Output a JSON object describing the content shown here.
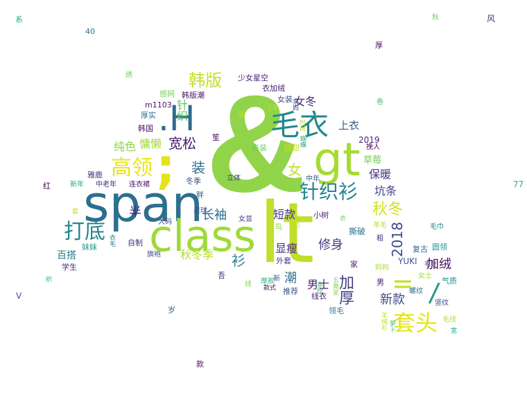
{
  "words": [
    {
      "text": "&",
      "color": "#91d44a"
    },
    {
      "text": "lt",
      "color": "#bfdf2a"
    },
    {
      "text": "span",
      "color": "#2c6f8e"
    },
    {
      "text": "class",
      "color": "#9fda38"
    },
    {
      "text": "gt",
      "color": "#a6db33"
    },
    {
      "text": ".H",
      "color": "#2e6b8e"
    },
    {
      "text": ";",
      "color": "#e6e31a"
    },
    {
      "text": "毛衣",
      "color": "#22888e"
    },
    {
      "text": "高领",
      "color": "#e9e41b"
    },
    {
      "text": "针织衫",
      "color": "#26838f"
    },
    {
      "text": "打底",
      "color": "#24848d"
    },
    {
      "text": "套头",
      "color": "#e6e419"
    },
    {
      "text": "=",
      "color": "#c7e020"
    },
    {
      "text": "/",
      "color": "#2a9a84"
    },
    {
      "text": "韩版",
      "color": "#c6df23"
    },
    {
      "text": "2018",
      "color": "#3e4989"
    },
    {
      "text": "宽松",
      "color": "#461a6b"
    },
    {
      "text": "秋冬",
      "color": "#d0e11c"
    },
    {
      "text": "长袖",
      "color": "#2f6c8e"
    },
    {
      "text": "女冬",
      "color": "#482475"
    },
    {
      "text": "加厚",
      "color": "#433d84"
    },
    {
      "text": "修身",
      "color": "#433e85"
    },
    {
      "text": "保暖",
      "color": "#453680"
    },
    {
      "text": "纯色",
      "color": "#8dd544"
    },
    {
      "text": "慵懒",
      "color": "#a0da39"
    },
    {
      "text": "坑条",
      "color": "#404387"
    },
    {
      "text": "装",
      "color": "#2e6e8e"
    },
    {
      "text": "女",
      "color": "#c3df25"
    },
    {
      "text": "半",
      "color": "#472d7b"
    },
    {
      "text": "衫",
      "color": "#2a7b8e"
    },
    {
      "text": "加绒",
      "color": "#471164"
    },
    {
      "text": "新款",
      "color": "#3f4788"
    },
    {
      "text": "上衣",
      "color": "#38588c"
    },
    {
      "text": "短款",
      "color": "#46327e"
    },
    {
      "text": "显瘦",
      "color": "#482878"
    },
    {
      "text": "男士",
      "color": "#482173"
    },
    {
      "text": "潮",
      "color": "#2c718e"
    },
    {
      "text": "秋冬季",
      "color": "#b5de2b"
    },
    {
      "text": "针织",
      "color": "#5ac864"
    },
    {
      "text": "百搭",
      "color": "#2a788e"
    },
    {
      "text": "草莓",
      "color": "#75d054"
    },
    {
      "text": "2019",
      "color": "#482677"
    },
    {
      "text": "YUKI",
      "color": "#3b528b"
    },
    {
      "text": "撕破",
      "color": "#2d708e"
    },
    {
      "text": "衣加绒",
      "color": "#481b6d"
    },
    {
      "text": "少女星空",
      "color": "#481f70"
    },
    {
      "text": "女装",
      "color": "#3d4e8a"
    },
    {
      "text": "感网",
      "color": "#7ad151"
    },
    {
      "text": "韩版潮",
      "color": "#48186a"
    },
    {
      "text": "m1103",
      "color": "#471365"
    },
    {
      "text": "厚实",
      "color": "#2c728e"
    },
    {
      "text": "韩国",
      "color": "#481467"
    },
    {
      "text": "18",
      "color": "#bade28"
    },
    {
      "text": "春装",
      "color": "#6ece58"
    },
    {
      "text": "甜甜",
      "color": "#c2df23"
    },
    {
      "text": "雅鹿",
      "color": "#463480"
    },
    {
      "text": "中老年",
      "color": "#46307e"
    },
    {
      "text": "连衣裙",
      "color": "#471063"
    },
    {
      "text": "新年",
      "color": "#27ad81"
    },
    {
      "text": "冬季",
      "color": "#39558c"
    },
    {
      "text": "立体",
      "color": "#453581"
    },
    {
      "text": "中年",
      "color": "#38598c"
    },
    {
      "text": "挽人",
      "color": "#440154"
    },
    {
      "text": "胖",
      "color": "#34618d"
    },
    {
      "text": "小树",
      "color": "#482475"
    },
    {
      "text": "女显",
      "color": "#414487"
    },
    {
      "text": "大码",
      "color": "#414287"
    },
    {
      "text": "自制",
      "color": "#472f7d"
    },
    {
      "text": "旗袍",
      "color": "#3e4a89"
    },
    {
      "text": "妹妹",
      "color": "#1f9a8a"
    },
    {
      "text": "学生",
      "color": "#482979"
    },
    {
      "text": "外套",
      "color": "#443983"
    },
    {
      "text": "家",
      "color": "#481c6e"
    },
    {
      "text": "推荐",
      "color": "#3b518b"
    },
    {
      "text": "新",
      "color": "#3a548c"
    },
    {
      "text": "线衣",
      "color": "#482071"
    },
    {
      "text": "领毛",
      "color": "#287c8e"
    },
    {
      "text": "男",
      "color": "#481769"
    },
    {
      "text": "羊毛",
      "color": "#b8de29"
    },
    {
      "text": "毛巾",
      "color": "#25838e"
    },
    {
      "text": "复古",
      "color": "#32658e"
    },
    {
      "text": "圆领",
      "color": "#21918c"
    },
    {
      "text": "粗",
      "color": "#443a83"
    },
    {
      "text": "女士",
      "color": "#a2da37"
    },
    {
      "text": "气质",
      "color": "#1f948c"
    },
    {
      "text": "螺纹",
      "color": "#2d718e"
    },
    {
      "text": "竖纹",
      "color": "#3e4c8a"
    },
    {
      "text": "毛线",
      "color": "#b0dd2f"
    },
    {
      "text": "妈妈",
      "color": "#a8db34"
    },
    {
      "text": "吾",
      "color": "#472c7a"
    },
    {
      "text": "星球",
      "color": "#3b528b"
    },
    {
      "text": "笙",
      "color": "#440256"
    },
    {
      "text": "岁",
      "color": "#31688e"
    },
    {
      "text": "款",
      "color": "#481769"
    },
    {
      "text": "红",
      "color": "#440154"
    },
    {
      "text": "V",
      "color": "#3b528b"
    },
    {
      "text": "77",
      "color": "#26ad81"
    },
    {
      "text": "40",
      "color": "#2c728e"
    },
    {
      "text": "系",
      "color": "#2ab07f"
    },
    {
      "text": "风",
      "color": "#46337f"
    },
    {
      "text": "厚",
      "color": "#471164"
    },
    {
      "text": "绣",
      "color": "#6ccd5a"
    },
    {
      "text": "卷",
      "color": "#3fbc73"
    },
    {
      "text": "秋",
      "color": "#6ccd5a"
    },
    {
      "text": "瘦",
      "color": "#b5de2b"
    },
    {
      "text": "鸟",
      "color": "#8bd646"
    },
    {
      "text": "毛衫",
      "color": "#c5e021"
    },
    {
      "text": "亲妈",
      "color": "#38588c"
    },
    {
      "text": "衣毛",
      "color": "#2b758e"
    },
    {
      "text": "条纹",
      "color": "#3fbc73"
    },
    {
      "text": "宽",
      "color": "#22a785"
    },
    {
      "text": "羊绒衫",
      "color": "#bddf26"
    },
    {
      "text": "五角星",
      "color": "#8bd646"
    },
    {
      "text": "蝴蝶",
      "color": "#22a785"
    },
    {
      "text": "时尚",
      "color": "#bddf26"
    },
    {
      "text": "衣",
      "color": "#6ece58"
    },
    {
      "text": "毛针",
      "color": "#46337f"
    },
    {
      "text": "套",
      "color": "#c5e021"
    },
    {
      "text": "线",
      "color": "#8bd646"
    },
    {
      "text": "厚款",
      "color": "#2ab07f"
    },
    {
      "text": "织",
      "color": "#2ab07f"
    },
    {
      "text": "款式",
      "color": "#471164"
    },
    {
      "text": "萝卜",
      "color": "#3fbc73"
    }
  ]
}
